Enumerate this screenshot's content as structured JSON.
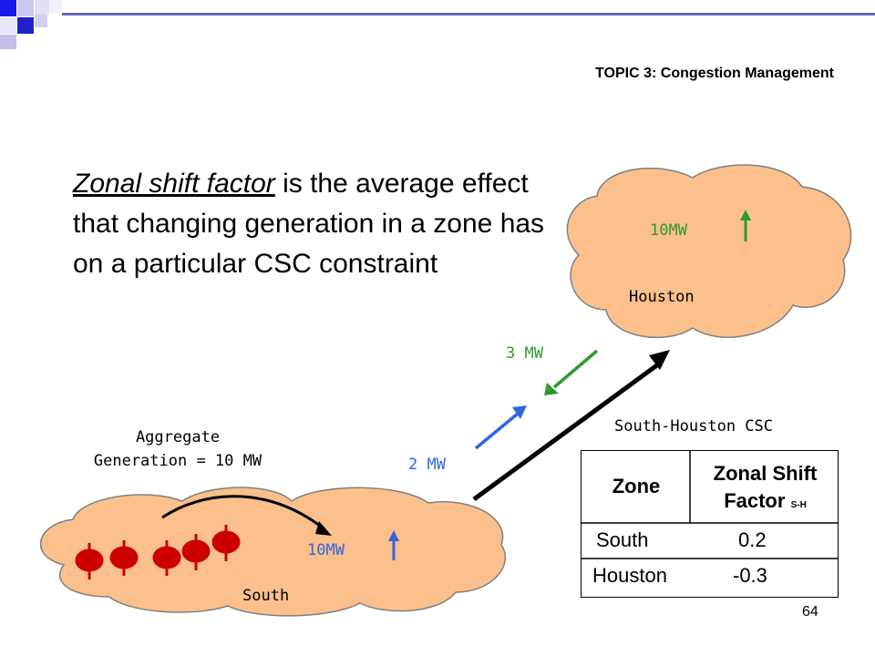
{
  "slide": {
    "topic": "TOPIC 3: Congestion Management",
    "definition": {
      "term": "Zonal shift factor",
      "rest": " is the average effect that changing generation in a zone has on a particular CSC constraint"
    },
    "page_number": "64"
  },
  "diagram": {
    "houston": {
      "label": "Houston",
      "gen": "10MW"
    },
    "south": {
      "label": "South",
      "gen": "10MW",
      "aggregate_line1": "Aggregate",
      "aggregate_line2": "Generation = 10 MW"
    },
    "flow_green": "3 MW",
    "flow_blue": "2 MW",
    "csc_label": "South-Houston CSC"
  },
  "table": {
    "header_zone": "Zone",
    "header_factor": "Zonal Shift Factor",
    "header_sub": "S-H",
    "rows": [
      {
        "zone": "South",
        "factor": "0.2"
      },
      {
        "zone": "Houston",
        "factor": "-0.3"
      }
    ]
  },
  "colors": {
    "cloud_fill": "#FBC08C",
    "green": "#2E9A2E",
    "blue": "#3366DD",
    "generator_red": "#CC0000"
  }
}
